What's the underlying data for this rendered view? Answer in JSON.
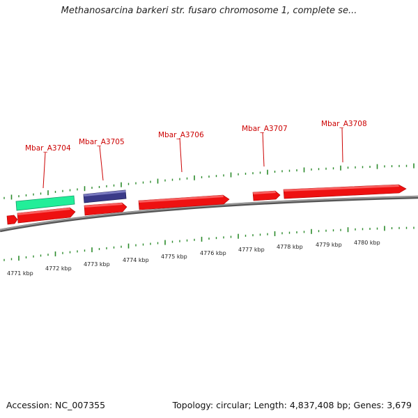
{
  "title": "Methanosarcina barkeri str. fusaro chromosome 1, complete se...",
  "footer": {
    "accession": "Accession: NC_007355",
    "summary": "Topology: circular; Length: 4,837,408 bp; Genes: 3,679"
  },
  "colors": {
    "gene": "#ee1111",
    "cds_green": "#22ee99",
    "cds_navy": "#3a3a88",
    "backbone": "#8a8a8a",
    "ticks": "#2a8a2a",
    "label": "#cc0000"
  },
  "kbp_labels": [
    "4771 kbp",
    "4772 kbp",
    "4773 kbp",
    "4774 kbp",
    "4775 kbp",
    "4776 kbp",
    "4777 kbp",
    "4778 kbp",
    "4779 kbp",
    "4780 kbp"
  ],
  "gene_labels": [
    "Mbar_A3704",
    "Mbar_A3705",
    "Mbar_A3706",
    "Mbar_A3707",
    "Mbar_A3708"
  ]
}
